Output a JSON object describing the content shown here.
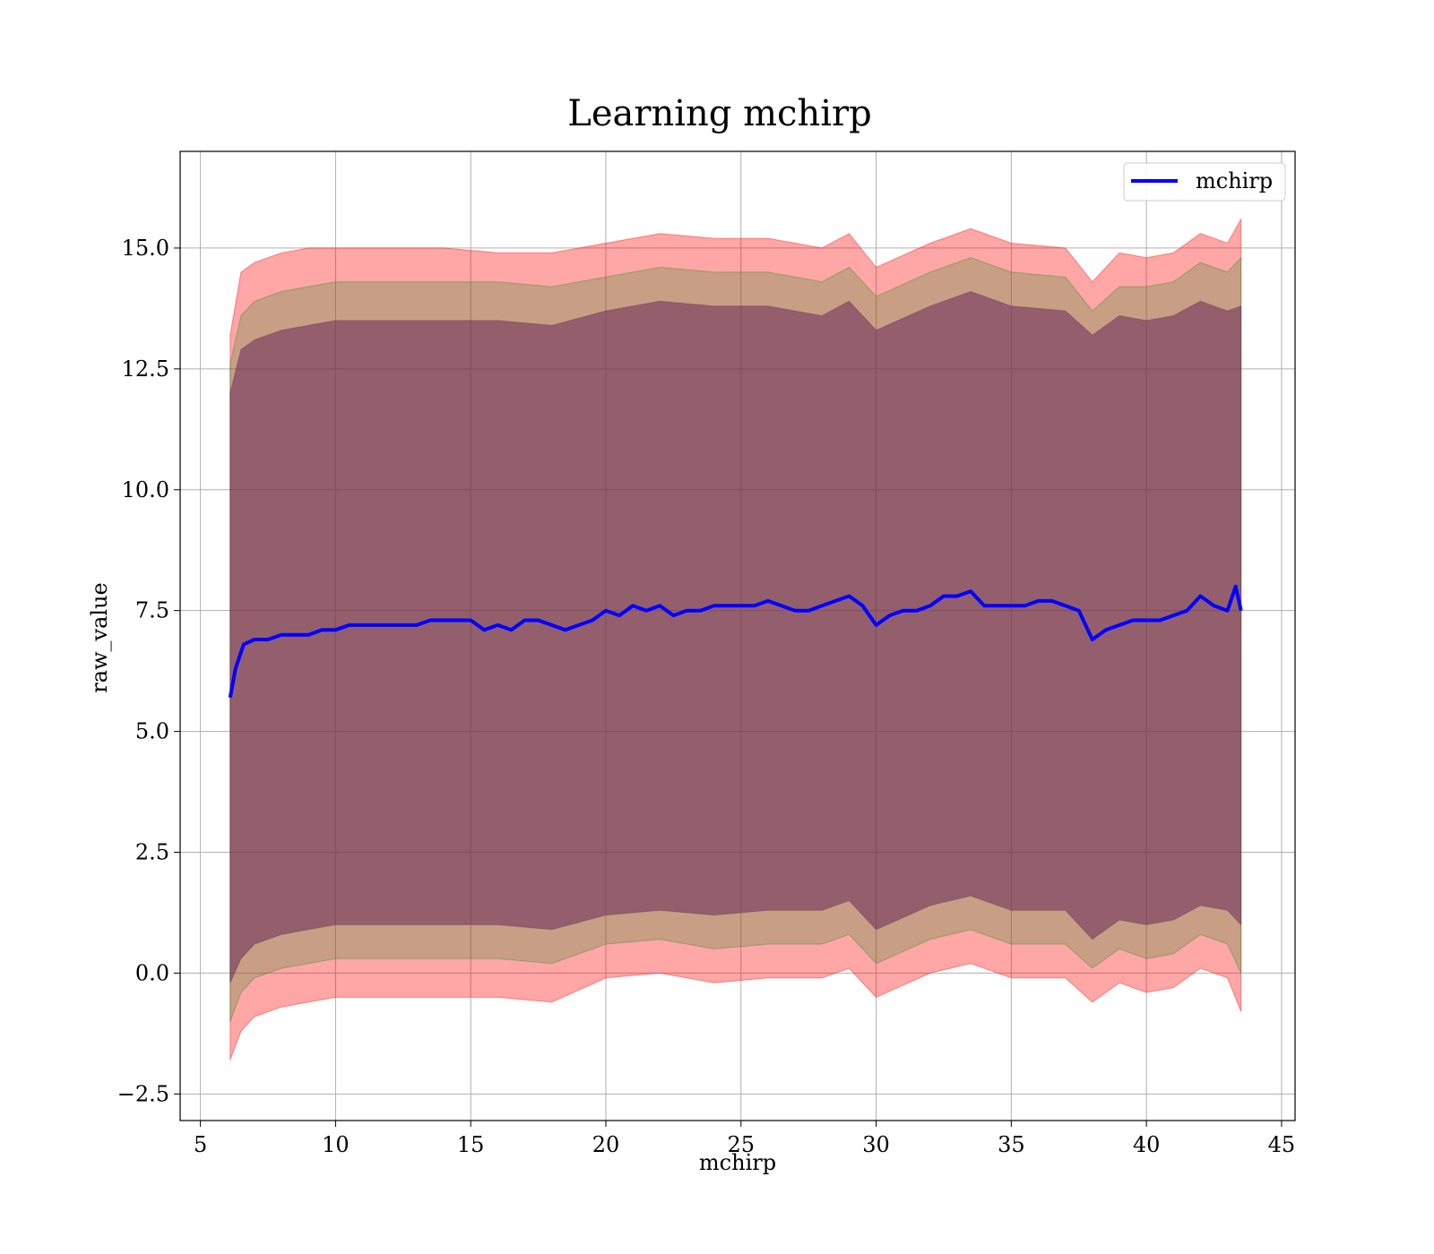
{
  "chart_data": {
    "type": "line",
    "title": "Learning mchirp",
    "xlabel": "mchirp",
    "ylabel": "raw_value",
    "xlim": [
      4.25,
      45.5
    ],
    "ylim": [
      -3.05,
      17.0
    ],
    "xticks": [
      5,
      10,
      15,
      20,
      25,
      30,
      35,
      40,
      45
    ],
    "xtick_labels": [
      "5",
      "10",
      "15",
      "20",
      "25",
      "30",
      "35",
      "40",
      "45"
    ],
    "yticks": [
      -2.5,
      0.0,
      2.5,
      5.0,
      7.5,
      10.0,
      12.5,
      15.0
    ],
    "ytick_labels": [
      "−2.5",
      "0.0",
      "2.5",
      "5.0",
      "7.5",
      "10.0",
      "12.5",
      "15.0"
    ],
    "grid": true,
    "legend": {
      "placement": "upper-right",
      "entries": [
        "mchirp"
      ]
    },
    "series": [
      {
        "name": "mchirp",
        "color": "#0000ff",
        "x": [
          6.1,
          6.3,
          6.6,
          7.0,
          7.5,
          8.0,
          8.5,
          9.0,
          9.5,
          10.0,
          10.5,
          11.0,
          11.5,
          12.0,
          12.5,
          13.0,
          13.5,
          14.0,
          14.5,
          15.0,
          15.5,
          16.0,
          16.5,
          17.0,
          17.5,
          18.0,
          18.5,
          19.0,
          19.5,
          20.0,
          20.5,
          21.0,
          21.5,
          22.0,
          22.5,
          23.0,
          23.5,
          24.0,
          24.5,
          25.0,
          25.5,
          26.0,
          26.5,
          27.0,
          27.5,
          28.0,
          28.5,
          29.0,
          29.5,
          30.0,
          30.5,
          31.0,
          31.5,
          32.0,
          32.5,
          33.0,
          33.5,
          34.0,
          34.5,
          35.0,
          35.5,
          36.0,
          36.5,
          37.0,
          37.5,
          38.0,
          38.5,
          39.0,
          39.5,
          40.0,
          40.5,
          41.0,
          41.5,
          42.0,
          42.5,
          43.0,
          43.3,
          43.5
        ],
        "y": [
          5.7,
          6.3,
          6.8,
          6.9,
          6.9,
          7.0,
          7.0,
          7.0,
          7.1,
          7.1,
          7.2,
          7.2,
          7.2,
          7.2,
          7.2,
          7.2,
          7.3,
          7.3,
          7.3,
          7.3,
          7.1,
          7.2,
          7.1,
          7.3,
          7.3,
          7.2,
          7.1,
          7.2,
          7.3,
          7.5,
          7.4,
          7.6,
          7.5,
          7.6,
          7.4,
          7.5,
          7.5,
          7.6,
          7.6,
          7.6,
          7.6,
          7.7,
          7.6,
          7.5,
          7.5,
          7.6,
          7.7,
          7.8,
          7.6,
          7.2,
          7.4,
          7.5,
          7.5,
          7.6,
          7.8,
          7.8,
          7.9,
          7.6,
          7.6,
          7.6,
          7.6,
          7.7,
          7.7,
          7.6,
          7.5,
          6.9,
          7.1,
          7.2,
          7.3,
          7.3,
          7.3,
          7.4,
          7.5,
          7.8,
          7.6,
          7.5,
          8.0,
          7.5
        ]
      }
    ],
    "bands": [
      {
        "color": "#ff0000",
        "opacity": 0.35,
        "x": [
          6.1,
          6.5,
          7.0,
          8.0,
          9.0,
          10.0,
          12.0,
          14.0,
          16.0,
          18.0,
          20.0,
          22.0,
          24.0,
          26.0,
          28.0,
          29.0,
          30.0,
          32.0,
          33.5,
          35.0,
          37.0,
          38.0,
          39.0,
          40.0,
          41.0,
          42.0,
          43.0,
          43.5
        ],
        "upper": [
          13.2,
          14.5,
          14.7,
          14.9,
          15.0,
          15.0,
          15.0,
          15.0,
          14.9,
          14.9,
          15.1,
          15.3,
          15.2,
          15.2,
          15.0,
          15.3,
          14.6,
          15.1,
          15.4,
          15.1,
          15.0,
          14.3,
          14.9,
          14.8,
          14.9,
          15.3,
          15.1,
          15.6
        ],
        "lower": [
          -1.8,
          -1.2,
          -0.9,
          -0.7,
          -0.6,
          -0.5,
          -0.5,
          -0.5,
          -0.5,
          -0.6,
          -0.1,
          0.0,
          -0.2,
          -0.1,
          -0.1,
          0.1,
          -0.5,
          0.0,
          0.2,
          -0.1,
          -0.1,
          -0.6,
          -0.2,
          -0.4,
          -0.3,
          0.1,
          -0.1,
          -0.8
        ]
      },
      {
        "color": "#228b22",
        "opacity": 0.25,
        "x": [
          6.1,
          6.5,
          7.0,
          8.0,
          9.0,
          10.0,
          12.0,
          14.0,
          16.0,
          18.0,
          20.0,
          22.0,
          24.0,
          26.0,
          28.0,
          29.0,
          30.0,
          32.0,
          33.5,
          35.0,
          37.0,
          38.0,
          39.0,
          40.0,
          41.0,
          42.0,
          43.0,
          43.5
        ],
        "upper": [
          12.6,
          13.6,
          13.9,
          14.1,
          14.2,
          14.3,
          14.3,
          14.3,
          14.3,
          14.2,
          14.4,
          14.6,
          14.5,
          14.5,
          14.3,
          14.6,
          14.0,
          14.5,
          14.8,
          14.5,
          14.4,
          13.7,
          14.2,
          14.2,
          14.3,
          14.7,
          14.5,
          14.8
        ],
        "lower": [
          -1.0,
          -0.4,
          -0.1,
          0.1,
          0.2,
          0.3,
          0.3,
          0.3,
          0.3,
          0.2,
          0.6,
          0.7,
          0.5,
          0.6,
          0.6,
          0.8,
          0.2,
          0.7,
          0.9,
          0.6,
          0.6,
          0.1,
          0.5,
          0.3,
          0.4,
          0.8,
          0.6,
          0.0
        ]
      },
      {
        "color": "#6a2a5a",
        "opacity": 0.55,
        "x": [
          6.1,
          6.5,
          7.0,
          8.0,
          9.0,
          10.0,
          12.0,
          14.0,
          16.0,
          18.0,
          20.0,
          22.0,
          24.0,
          26.0,
          28.0,
          29.0,
          30.0,
          32.0,
          33.5,
          35.0,
          37.0,
          38.0,
          39.0,
          40.0,
          41.0,
          42.0,
          43.0,
          43.5
        ],
        "upper": [
          12.0,
          12.9,
          13.1,
          13.3,
          13.4,
          13.5,
          13.5,
          13.5,
          13.5,
          13.4,
          13.7,
          13.9,
          13.8,
          13.8,
          13.6,
          13.9,
          13.3,
          13.8,
          14.1,
          13.8,
          13.7,
          13.2,
          13.6,
          13.5,
          13.6,
          13.9,
          13.7,
          13.8
        ],
        "lower": [
          -0.2,
          0.3,
          0.6,
          0.8,
          0.9,
          1.0,
          1.0,
          1.0,
          1.0,
          0.9,
          1.2,
          1.3,
          1.2,
          1.3,
          1.3,
          1.5,
          0.9,
          1.4,
          1.6,
          1.3,
          1.3,
          0.7,
          1.1,
          1.0,
          1.1,
          1.4,
          1.3,
          1.0
        ]
      }
    ]
  }
}
